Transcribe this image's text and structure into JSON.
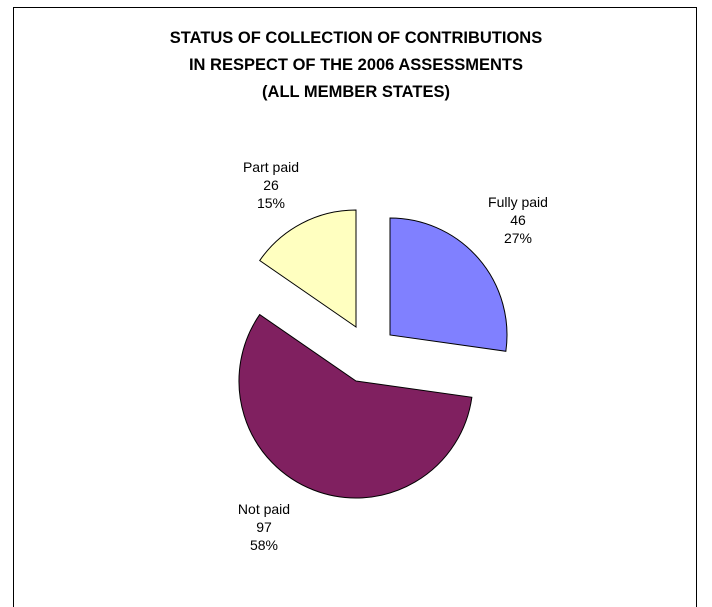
{
  "chart_data": {
    "type": "pie",
    "title_lines": [
      "STATUS OF COLLECTION OF CONTRIBUTIONS",
      "IN RESPECT OF THE 2006 ASSESSMENTS",
      "(ALL MEMBER STATES)"
    ],
    "slices": [
      {
        "label": "Fully paid",
        "value": 46,
        "percent": "27%",
        "color": "#8080ff",
        "exploded": true
      },
      {
        "label": "Not paid",
        "value": 97,
        "percent": "58%",
        "color": "#802060",
        "exploded": true
      },
      {
        "label": "Part paid",
        "value": 26,
        "percent": "15%",
        "color": "#ffffc0",
        "exploded": true
      }
    ],
    "legend": "none"
  }
}
